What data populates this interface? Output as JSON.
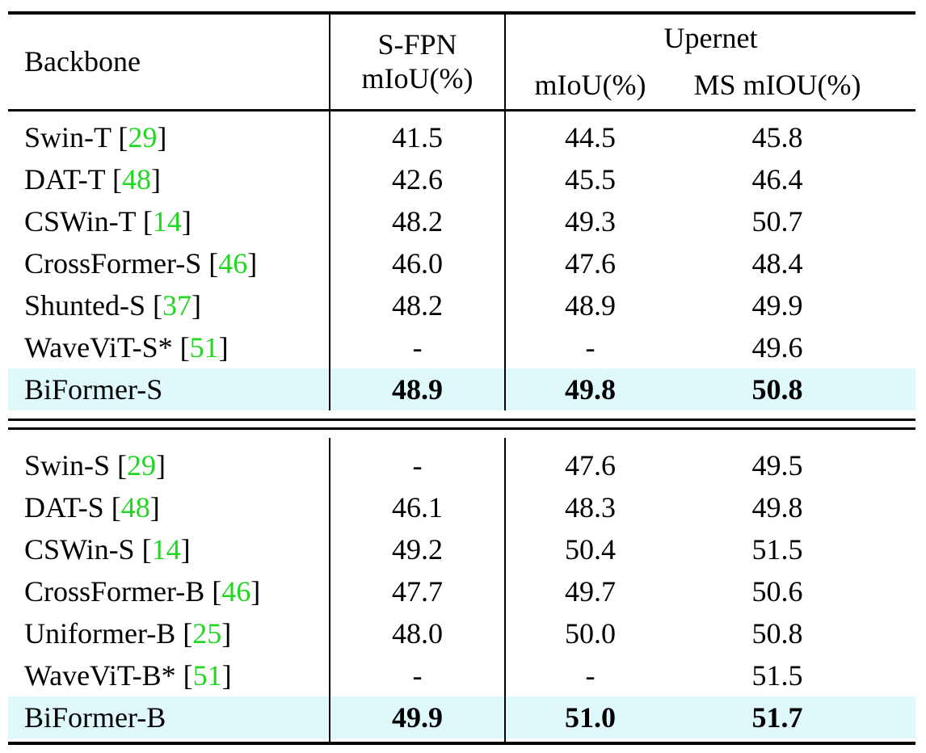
{
  "colors": {
    "citation_green": "#22d622",
    "highlight_row": "#dff8fa",
    "rule_black": "#000000",
    "background": "#ffffff"
  },
  "table": {
    "headers": {
      "backbone": "Backbone",
      "sfpn_group": "S-FPN",
      "sfpn_metric": "mIoU(%)",
      "upernet_group": "Upernet",
      "upernet_miou": "mIoU(%)",
      "upernet_ms_miou": "MS mIOU(%)"
    },
    "groups": [
      {
        "rows": [
          {
            "backbone": "Swin-T",
            "ref": "29",
            "sfpn_miou": "41.5",
            "upernet_miou": "44.5",
            "upernet_ms_miou": "45.8",
            "highlight": false
          },
          {
            "backbone": "DAT-T",
            "ref": "48",
            "sfpn_miou": "42.6",
            "upernet_miou": "45.5",
            "upernet_ms_miou": "46.4",
            "highlight": false
          },
          {
            "backbone": "CSWin-T",
            "ref": "14",
            "sfpn_miou": "48.2",
            "upernet_miou": "49.3",
            "upernet_ms_miou": "50.7",
            "highlight": false
          },
          {
            "backbone": "CrossFormer-S",
            "ref": "46",
            "sfpn_miou": "46.0",
            "upernet_miou": "47.6",
            "upernet_ms_miou": "48.4",
            "highlight": false
          },
          {
            "backbone": "Shunted-S",
            "ref": "37",
            "sfpn_miou": "48.2",
            "upernet_miou": "48.9",
            "upernet_ms_miou": "49.9",
            "highlight": false
          },
          {
            "backbone": "WaveViT-S*",
            "ref": "51",
            "sfpn_miou": "-",
            "upernet_miou": "-",
            "upernet_ms_miou": "49.6",
            "highlight": false
          },
          {
            "backbone": "BiFormer-S",
            "ref": null,
            "sfpn_miou": "48.9",
            "upernet_miou": "49.8",
            "upernet_ms_miou": "50.8",
            "highlight": true
          }
        ]
      },
      {
        "rows": [
          {
            "backbone": "Swin-S",
            "ref": "29",
            "sfpn_miou": "-",
            "upernet_miou": "47.6",
            "upernet_ms_miou": "49.5",
            "highlight": false
          },
          {
            "backbone": "DAT-S",
            "ref": "48",
            "sfpn_miou": "46.1",
            "upernet_miou": "48.3",
            "upernet_ms_miou": "49.8",
            "highlight": false
          },
          {
            "backbone": "CSWin-S",
            "ref": "14",
            "sfpn_miou": "49.2",
            "upernet_miou": "50.4",
            "upernet_ms_miou": "51.5",
            "highlight": false
          },
          {
            "backbone": "CrossFormer-B",
            "ref": "46",
            "sfpn_miou": "47.7",
            "upernet_miou": "49.7",
            "upernet_ms_miou": "50.6",
            "highlight": false
          },
          {
            "backbone": "Uniformer-B",
            "ref": "25",
            "sfpn_miou": "48.0",
            "upernet_miou": "50.0",
            "upernet_ms_miou": "50.8",
            "highlight": false
          },
          {
            "backbone": "WaveViT-B*",
            "ref": "51",
            "sfpn_miou": "-",
            "upernet_miou": "-",
            "upernet_ms_miou": "51.5",
            "highlight": false
          },
          {
            "backbone": "BiFormer-B",
            "ref": null,
            "sfpn_miou": "49.9",
            "upernet_miou": "51.0",
            "upernet_ms_miou": "51.7",
            "highlight": true
          }
        ]
      }
    ]
  }
}
